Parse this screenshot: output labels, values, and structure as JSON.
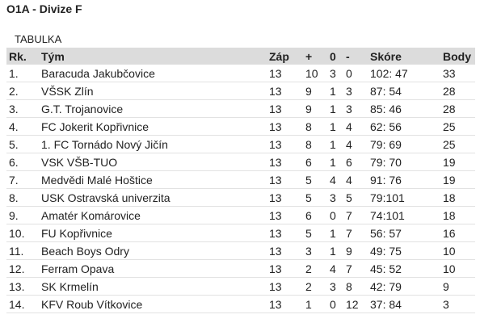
{
  "header": {
    "title": "O1A - Divize F"
  },
  "section": "TABULKA",
  "table": {
    "columns": [
      "Rk.",
      "Tým",
      "Záp",
      "+",
      "0",
      "-",
      "Skóre",
      "Body"
    ],
    "rows": [
      [
        "1.",
        "Baracuda Jakubčovice",
        13,
        10,
        3,
        0,
        "102: 47",
        33
      ],
      [
        "2.",
        "VŠSK Zlín",
        13,
        9,
        1,
        3,
        "87: 54",
        28
      ],
      [
        "3.",
        "G.T. Trojanovice",
        13,
        9,
        1,
        3,
        "85: 46",
        28
      ],
      [
        "4.",
        "FC Jokerit Kopřivnice",
        13,
        8,
        1,
        4,
        "62: 56",
        25
      ],
      [
        "5.",
        "1. FC Tornádo Nový Jičín",
        13,
        8,
        1,
        4,
        "79: 69",
        25
      ],
      [
        "6.",
        "VSK VŠB-TUO",
        13,
        6,
        1,
        6,
        "79: 70",
        19
      ],
      [
        "7.",
        "Medvědi Malé Hoštice",
        13,
        5,
        4,
        4,
        "91: 76",
        19
      ],
      [
        "8.",
        "USK Ostravská univerzita",
        13,
        5,
        3,
        5,
        "79:101",
        18
      ],
      [
        "9.",
        "Amatér Komárovice",
        13,
        6,
        0,
        7,
        "74:101",
        18
      ],
      [
        "10.",
        "FU Kopřivnice",
        13,
        5,
        1,
        7,
        "56: 57",
        16
      ],
      [
        "11.",
        "Beach Boys Odry",
        13,
        3,
        1,
        9,
        "49: 75",
        10
      ],
      [
        "12.",
        "Ferram Opava",
        13,
        2,
        4,
        7,
        "45: 52",
        10
      ],
      [
        "13.",
        "SK Krmelín",
        13,
        2,
        3,
        8,
        "42: 79",
        9
      ],
      [
        "14.",
        "KFV Roub Vítkovice",
        13,
        1,
        0,
        12,
        "37: 84",
        3
      ]
    ]
  }
}
